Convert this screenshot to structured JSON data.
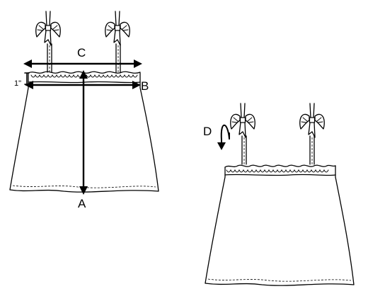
{
  "labels": {
    "a": "A",
    "b": "B",
    "c": "C",
    "d": "D",
    "inch": "1\""
  },
  "colors": {
    "ink": "#000000",
    "background": "#ffffff"
  }
}
